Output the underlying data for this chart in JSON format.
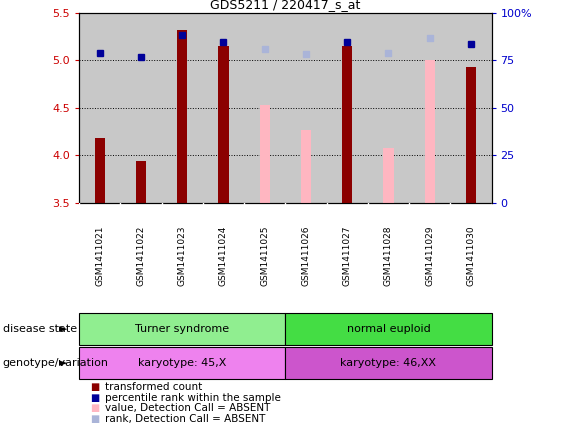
{
  "title": "GDS5211 / 220417_s_at",
  "samples": [
    "GSM1411021",
    "GSM1411022",
    "GSM1411023",
    "GSM1411024",
    "GSM1411025",
    "GSM1411026",
    "GSM1411027",
    "GSM1411028",
    "GSM1411029",
    "GSM1411030"
  ],
  "transformed_count": [
    4.18,
    3.94,
    5.32,
    5.15,
    null,
    null,
    5.15,
    null,
    null,
    4.93
  ],
  "percentile_rank": [
    5.08,
    5.03,
    5.27,
    5.19,
    null,
    null,
    5.19,
    null,
    null,
    5.17
  ],
  "value_absent": [
    null,
    null,
    null,
    null,
    4.53,
    4.27,
    null,
    4.08,
    5.0,
    null
  ],
  "rank_absent": [
    null,
    null,
    null,
    null,
    5.12,
    5.07,
    null,
    5.08,
    5.23,
    null
  ],
  "ylim": [
    3.5,
    5.5
  ],
  "yticks_left": [
    3.5,
    4.0,
    4.5,
    5.0,
    5.5
  ],
  "yticks_right": [
    0,
    25,
    50,
    75,
    100
  ],
  "bar_width": 0.25,
  "disease_state_groups": [
    {
      "label": "Turner syndrome",
      "start": 0,
      "end": 4,
      "color": "#90ee90"
    },
    {
      "label": "normal euploid",
      "start": 5,
      "end": 9,
      "color": "#44dd44"
    }
  ],
  "genotype_groups": [
    {
      "label": "karyotype: 45,X",
      "start": 0,
      "end": 4,
      "color": "#ee82ee"
    },
    {
      "label": "karyotype: 46,XX",
      "start": 5,
      "end": 9,
      "color": "#cc55cc"
    }
  ],
  "colors": {
    "transformed_count": "#8b0000",
    "percentile_rank": "#000099",
    "value_absent": "#ffb6c1",
    "rank_absent": "#aab4d8",
    "axis_left": "#cc0000",
    "axis_right": "#0000cc",
    "background_plot": "#ffffff",
    "background_sample": "#c8c8c8"
  },
  "legend_items": [
    {
      "label": "transformed count",
      "color": "#8b0000"
    },
    {
      "label": "percentile rank within the sample",
      "color": "#000099"
    },
    {
      "label": "value, Detection Call = ABSENT",
      "color": "#ffb6c1"
    },
    {
      "label": "rank, Detection Call = ABSENT",
      "color": "#aab4d8"
    }
  ],
  "figsize": [
    5.65,
    4.23
  ],
  "dpi": 100
}
